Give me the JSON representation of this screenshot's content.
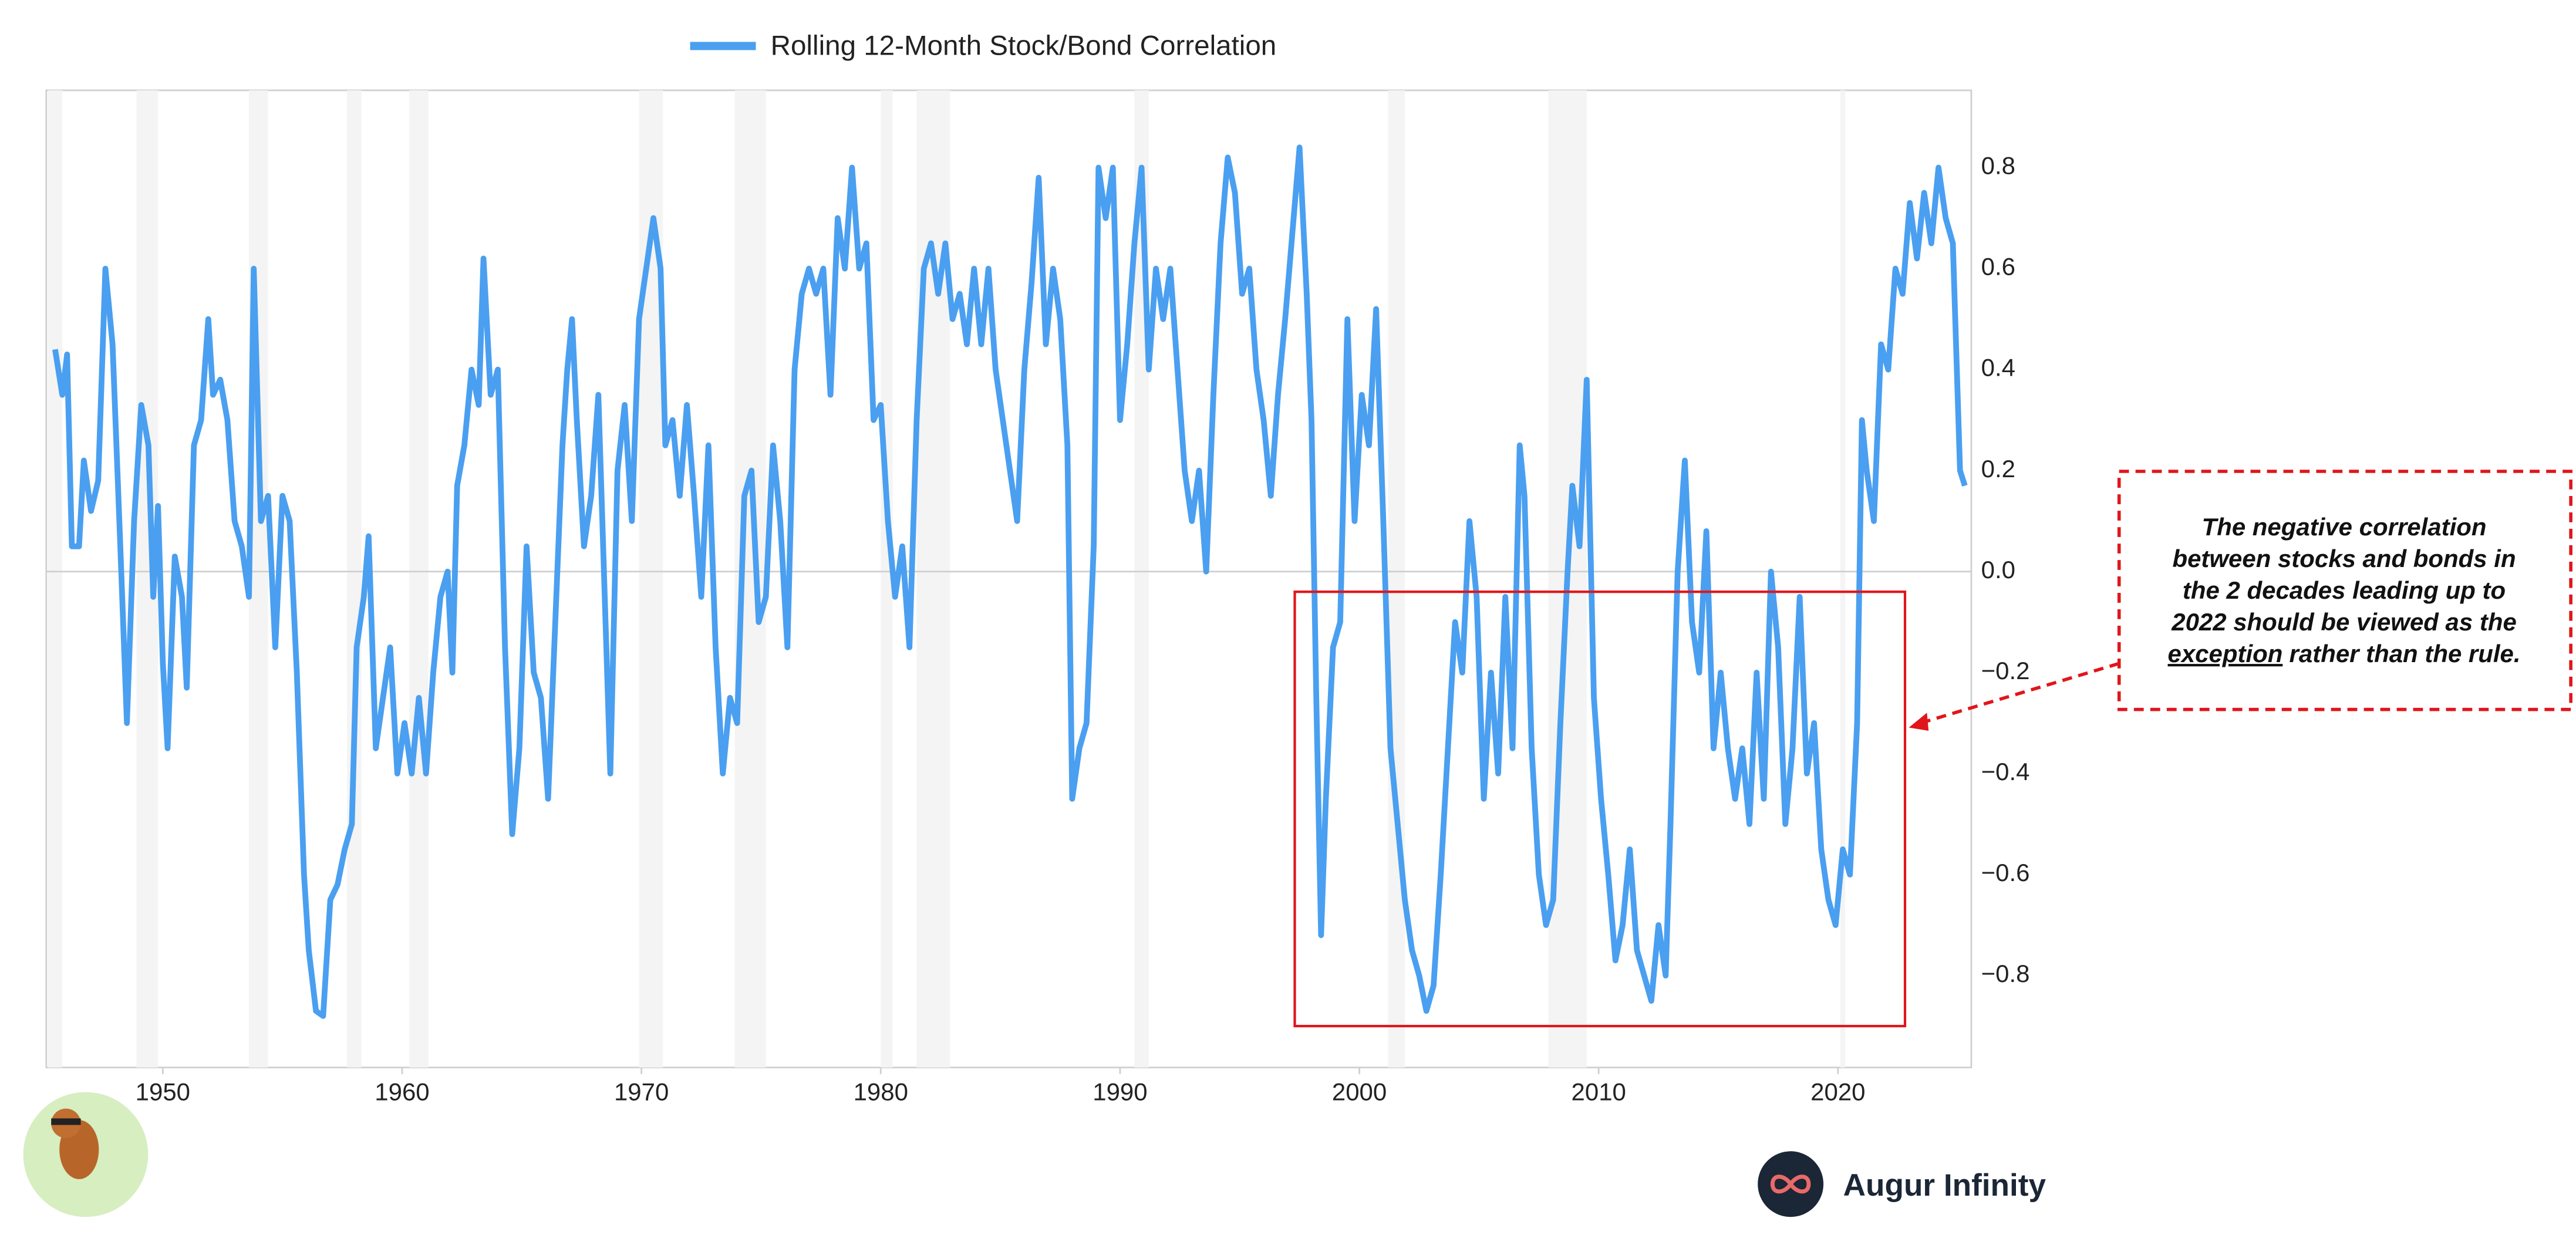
{
  "chart_data": {
    "type": "line",
    "series": [
      {
        "name": "Rolling 12-Month Stock/Bond Correlation",
        "color": "#4a9ff0",
        "values": [
          0.44,
          0.35,
          0.43,
          0.05,
          0.05,
          0.22,
          0.12,
          0.18,
          0.6,
          0.45,
          0.08,
          -0.3,
          0.1,
          0.33,
          0.25,
          -0.05,
          0.13,
          -0.18,
          -0.35,
          0.03,
          -0.05,
          -0.23,
          0.25,
          0.3,
          0.5,
          0.35,
          0.38,
          0.3,
          0.1,
          0.05,
          -0.05,
          0.6,
          0.1,
          0.15,
          -0.15,
          0.15,
          0.1,
          -0.2,
          -0.6,
          -0.75,
          -0.87,
          -0.88,
          -0.65,
          -0.62,
          -0.55,
          -0.5,
          -0.15,
          -0.05,
          0.07,
          -0.35,
          -0.25,
          -0.15,
          -0.4,
          -0.3,
          -0.4,
          -0.25,
          -0.4,
          -0.2,
          -0.05,
          0.0,
          -0.2,
          0.17,
          0.25,
          0.4,
          0.33,
          0.62,
          0.35,
          0.4,
          -0.15,
          -0.52,
          -0.35,
          0.05,
          -0.2,
          -0.25,
          -0.45,
          -0.1,
          0.25,
          0.4,
          0.5,
          0.3,
          0.05,
          0.15,
          0.35,
          -0.1,
          -0.4,
          0.2,
          0.33,
          0.1,
          0.5,
          0.6,
          0.7,
          0.6,
          0.25,
          0.3,
          0.15,
          0.33,
          0.15,
          -0.05,
          0.25,
          -0.15,
          -0.4,
          -0.25,
          -0.3,
          0.15,
          0.2,
          -0.1,
          -0.05,
          0.25,
          0.1,
          -0.15,
          0.4,
          0.55,
          0.6,
          0.55,
          0.6,
          0.35,
          0.7,
          0.6,
          0.8,
          0.6,
          0.65,
          0.3,
          0.33,
          0.1,
          -0.05,
          0.05,
          -0.15,
          0.3,
          0.6,
          0.65,
          0.55,
          0.65,
          0.5,
          0.55,
          0.45,
          0.6,
          0.45,
          0.6,
          0.4,
          0.3,
          0.2,
          0.1,
          0.4,
          0.57,
          0.78,
          0.45,
          0.6,
          0.5,
          0.25,
          -0.45,
          -0.35,
          -0.3,
          0.05,
          0.8,
          0.7,
          0.8,
          0.3,
          0.45,
          0.65,
          0.8,
          0.4,
          0.6,
          0.5,
          0.6,
          0.4,
          0.2,
          0.1,
          0.2,
          0.0,
          0.35,
          0.65,
          0.82,
          0.75,
          0.55,
          0.6,
          0.4,
          0.3,
          0.15,
          0.35,
          0.5,
          0.67,
          0.84,
          0.55,
          0.3,
          -0.25,
          -0.72,
          -0.45,
          -0.15,
          -0.1,
          0.5,
          0.1,
          0.35,
          0.25,
          0.52,
          0.1,
          -0.35,
          -0.5,
          -0.65,
          -0.75,
          -0.8,
          -0.87,
          -0.82,
          -0.6,
          -0.35,
          -0.1,
          -0.2,
          0.1,
          -0.05,
          -0.45,
          -0.2,
          -0.4,
          -0.05,
          -0.35,
          0.25,
          0.15,
          -0.35,
          -0.6,
          -0.7,
          -0.65,
          -0.3,
          0.0,
          0.17,
          0.05,
          0.38,
          -0.25,
          -0.45,
          -0.6,
          -0.77,
          -0.7,
          -0.55,
          -0.75,
          -0.8,
          -0.85,
          -0.7,
          -0.8,
          -0.5,
          0.0,
          0.22,
          -0.1,
          -0.2,
          0.08,
          -0.35,
          -0.2,
          -0.35,
          -0.45,
          -0.35,
          -0.5,
          -0.2,
          -0.45,
          0.0,
          -0.15,
          -0.5,
          -0.35,
          -0.05,
          -0.4,
          -0.3,
          -0.55,
          -0.65,
          -0.7,
          -0.55,
          -0.6,
          -0.3,
          0.3,
          0.2,
          0.1,
          0.45,
          0.4,
          0.6,
          0.55,
          0.73,
          0.62,
          0.75,
          0.65,
          0.8,
          0.7,
          0.65,
          0.2,
          0.17
        ]
      }
    ],
    "x": [
      1945.5,
      1945.8,
      1946.0,
      1946.2,
      1946.5,
      1946.7,
      1947.0,
      1947.3,
      1947.6,
      1947.9,
      1948.2,
      1948.5,
      1948.8,
      1949.1,
      1949.4,
      1949.6,
      1949.8,
      1950.0,
      1950.2,
      1950.5,
      1950.8,
      1951.0,
      1951.3,
      1951.6,
      1951.9,
      1952.1,
      1952.4,
      1952.7,
      1953.0,
      1953.3,
      1953.6,
      1953.8,
      1954.1,
      1954.4,
      1954.7,
      1955.0,
      1955.3,
      1955.6,
      1955.9,
      1956.1,
      1956.4,
      1956.7,
      1957.0,
      1957.3,
      1957.6,
      1957.9,
      1958.1,
      1958.4,
      1958.6,
      1958.9,
      1959.2,
      1959.5,
      1959.8,
      1960.1,
      1960.4,
      1960.7,
      1961.0,
      1961.3,
      1961.6,
      1961.9,
      1962.1,
      1962.3,
      1962.6,
      1962.9,
      1963.2,
      1963.4,
      1963.7,
      1964.0,
      1964.3,
      1964.6,
      1964.9,
      1965.2,
      1965.5,
      1965.8,
      1966.1,
      1966.4,
      1966.7,
      1966.9,
      1967.1,
      1967.3,
      1967.6,
      1967.9,
      1968.2,
      1968.5,
      1968.7,
      1969.0,
      1969.3,
      1969.6,
      1969.9,
      1970.2,
      1970.5,
      1970.8,
      1971.0,
      1971.3,
      1971.6,
      1971.9,
      1972.2,
      1972.5,
      1972.8,
      1973.1,
      1973.4,
      1973.7,
      1974.0,
      1974.3,
      1974.6,
      1974.9,
      1975.2,
      1975.5,
      1975.8,
      1976.1,
      1976.4,
      1976.7,
      1977.0,
      1977.3,
      1977.6,
      1977.9,
      1978.2,
      1978.5,
      1978.8,
      1979.1,
      1979.4,
      1979.7,
      1980.0,
      1980.3,
      1980.6,
      1980.9,
      1981.2,
      1981.5,
      1981.8,
      1982.1,
      1982.4,
      1982.7,
      1983.0,
      1983.3,
      1983.6,
      1983.9,
      1984.2,
      1984.5,
      1984.8,
      1985.1,
      1985.4,
      1985.7,
      1986.0,
      1986.3,
      1986.6,
      1986.9,
      1987.2,
      1987.5,
      1987.8,
      1988.0,
      1988.3,
      1988.6,
      1988.9,
      1989.1,
      1989.4,
      1989.7,
      1990.0,
      1990.3,
      1990.6,
      1990.9,
      1991.2,
      1991.5,
      1991.8,
      1992.1,
      1992.4,
      1992.7,
      1993.0,
      1993.3,
      1993.6,
      1993.9,
      1994.2,
      1994.5,
      1994.8,
      1995.1,
      1995.4,
      1995.7,
      1996.0,
      1996.3,
      1996.6,
      1996.9,
      1997.2,
      1997.5,
      1997.8,
      1998.0,
      1998.2,
      1998.4,
      1998.6,
      1998.9,
      1999.2,
      1999.5,
      1999.8,
      2000.1,
      2000.4,
      2000.7,
      2001.0,
      2001.3,
      2001.6,
      2001.9,
      2002.2,
      2002.5,
      2002.8,
      2003.1,
      2003.4,
      2003.7,
      2004.0,
      2004.3,
      2004.6,
      2004.9,
      2005.2,
      2005.5,
      2005.8,
      2006.1,
      2006.4,
      2006.7,
      2006.9,
      2007.2,
      2007.5,
      2007.8,
      2008.1,
      2008.4,
      2008.7,
      2008.9,
      2009.2,
      2009.5,
      2009.8,
      2010.1,
      2010.4,
      2010.7,
      2011.0,
      2011.3,
      2011.6,
      2011.9,
      2012.2,
      2012.5,
      2012.8,
      2013.0,
      2013.3,
      2013.6,
      2013.9,
      2014.2,
      2014.5,
      2014.8,
      2015.1,
      2015.4,
      2015.7,
      2016.0,
      2016.3,
      2016.6,
      2016.9,
      2017.2,
      2017.5,
      2017.8,
      2018.1,
      2018.4,
      2018.7,
      2019.0,
      2019.3,
      2019.6,
      2019.9,
      2020.2,
      2020.5,
      2020.8,
      2021.0,
      2021.2,
      2021.5,
      2021.8,
      2022.1,
      2022.4,
      2022.7,
      2023.0,
      2023.3,
      2023.6,
      2023.9,
      2024.2,
      2024.5,
      2024.8,
      2025.1,
      2025.3
    ],
    "xlim": [
      1945.13,
      2025.57
    ],
    "xticks": [
      1950,
      1960,
      1970,
      1980,
      1990,
      2000,
      2010,
      2020
    ],
    "ylim": [
      -0.982,
      0.953
    ],
    "yticks": [
      {
        "value": -0.8,
        "label": "−0.8"
      },
      {
        "value": -0.6,
        "label": "−0.6"
      },
      {
        "value": -0.4,
        "label": "−0.4"
      },
      {
        "value": -0.2,
        "label": "−0.2"
      },
      {
        "value": 0,
        "label": "0.0"
      },
      0.2,
      0.4,
      0.6,
      0.8
    ],
    "zero_line": true,
    "shaded_periods": [
      [
        1945.2,
        1945.8
      ],
      [
        1948.9,
        1949.8
      ],
      [
        1953.6,
        1954.4
      ],
      [
        1957.7,
        1958.3
      ],
      [
        1960.3,
        1961.1
      ],
      [
        1969.9,
        1970.9
      ],
      [
        1973.9,
        1975.2
      ],
      [
        1980.0,
        1980.5
      ],
      [
        1981.5,
        1982.9
      ],
      [
        1990.6,
        1991.2
      ],
      [
        2001.2,
        2001.9
      ],
      [
        2007.9,
        2009.5
      ],
      [
        2020.1,
        2020.3
      ]
    ],
    "highlight": {
      "x": [
        1997.3,
        2022.8
      ],
      "y": [
        -0.9,
        -0.04
      ],
      "color": "#e0161b"
    },
    "annotation": {
      "lines": [
        "The negative correlation",
        "between stocks and bonds in",
        "the 2 decades leading up to",
        "2022 should be viewed as the"
      ],
      "emphasis": "exception",
      "tail": "rather than the rule."
    },
    "brand": "Augur Infinity"
  }
}
